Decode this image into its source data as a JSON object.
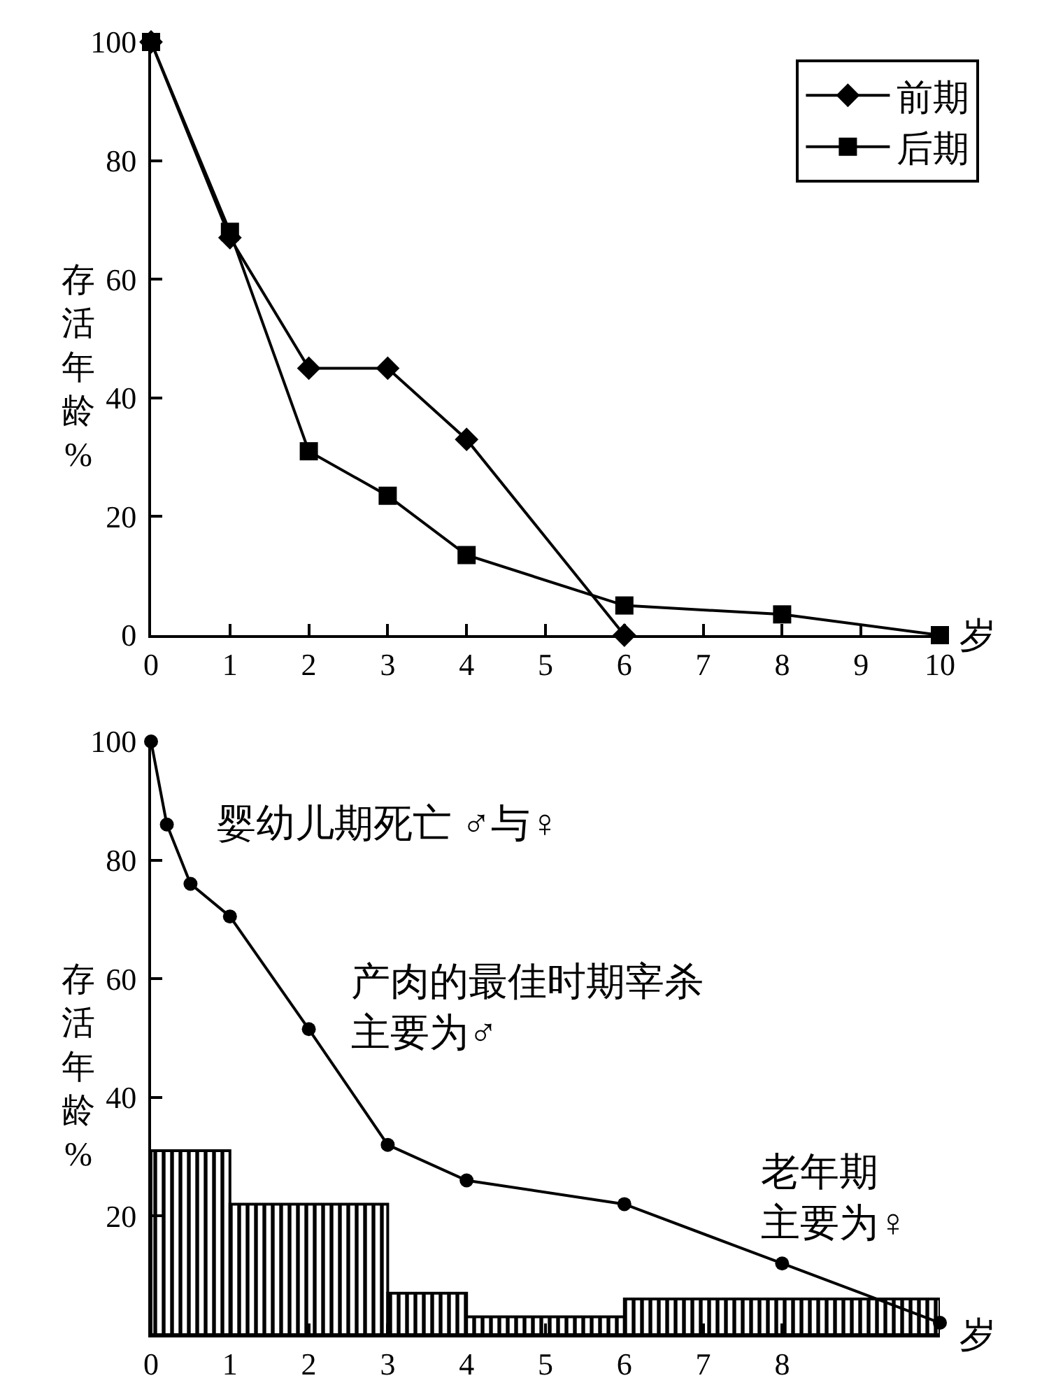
{
  "chart_data": [
    {
      "type": "line",
      "ylabel": "存活年龄%",
      "xlabel": "岁",
      "xlim": [
        0,
        10
      ],
      "ylim": [
        0,
        100
      ],
      "xticks": [
        0,
        1,
        2,
        3,
        4,
        5,
        6,
        7,
        8,
        9,
        10
      ],
      "yticks": [
        0,
        20,
        40,
        60,
        80,
        100
      ],
      "legend": "top right",
      "series": [
        {
          "name": "前期",
          "color": "#000000",
          "marker": "diamond",
          "x": [
            0,
            1,
            2,
            3,
            4,
            6
          ],
          "values": [
            100,
            67,
            45,
            45,
            33,
            0
          ]
        },
        {
          "name": "后期",
          "color": "#000000",
          "marker": "square",
          "x": [
            0,
            1,
            2,
            3,
            4,
            6,
            8,
            10
          ],
          "values": [
            100,
            68,
            31,
            23.5,
            13.5,
            5,
            3.5,
            0
          ]
        }
      ]
    },
    {
      "type": "line",
      "ylabel": "存活年龄%",
      "xlabel": "岁",
      "xlim": [
        0,
        10
      ],
      "ylim": [
        0,
        100
      ],
      "xticks": [
        0,
        1,
        2,
        3,
        4,
        5,
        6,
        7,
        8
      ],
      "yticks": [
        20,
        40,
        60,
        80,
        100
      ],
      "annotations": [
        "婴幼儿期死亡 ♂与♀",
        "产肉的最佳时期宰杀主要为♂",
        "老年期主要为♀"
      ],
      "series": [
        {
          "type": "histogram",
          "color": "#000000",
          "bins": [
            0,
            1,
            3,
            4,
            6,
            10
          ],
          "values": [
            31,
            22,
            7,
            3,
            6
          ]
        },
        {
          "color": "#000000",
          "marker": "circle",
          "x": [
            0,
            0.2,
            0.5,
            1,
            2,
            3,
            4,
            6,
            8,
            10
          ],
          "values": [
            100,
            86,
            76,
            70.5,
            51.5,
            32,
            26,
            22,
            12,
            2
          ]
        }
      ]
    }
  ]
}
